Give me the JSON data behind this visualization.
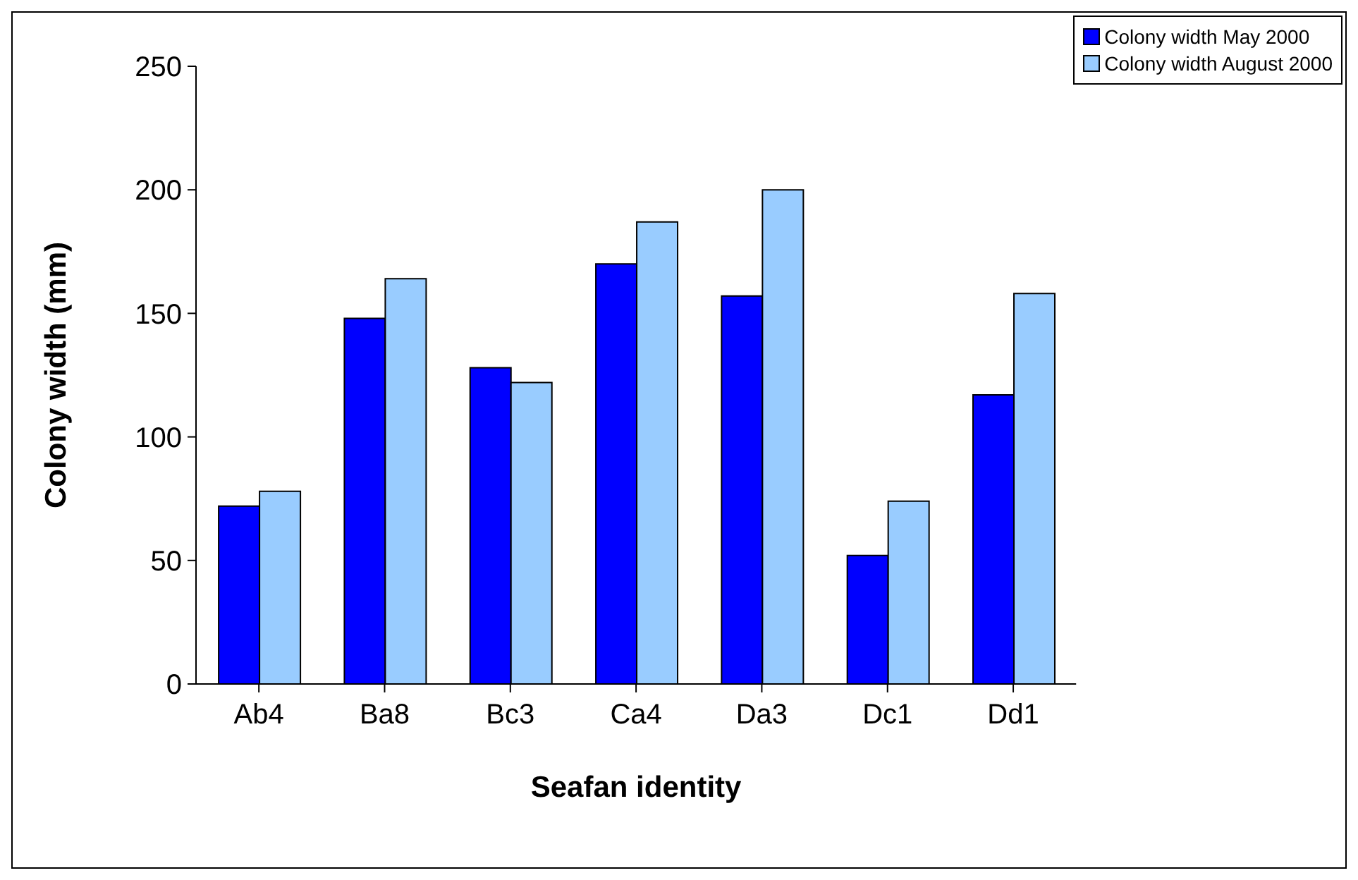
{
  "chart_data": {
    "type": "bar",
    "xlabel": "Seafan identity",
    "ylabel": "Colony width (mm)",
    "categories": [
      "Ab4",
      "Ba8",
      "Bc3",
      "Ca4",
      "Da3",
      "Dc1",
      "Dd1"
    ],
    "series": [
      {
        "name": "Colony width May 2000",
        "color": "#0000ff",
        "values": [
          72,
          148,
          128,
          170,
          157,
          52,
          117
        ]
      },
      {
        "name": "Colony width August 2000",
        "color": "#99ccff",
        "values": [
          78,
          164,
          122,
          187,
          200,
          74,
          158
        ]
      }
    ],
    "ylim": [
      0,
      250
    ],
    "yticks": [
      0,
      50,
      100,
      150,
      200,
      250
    ],
    "grid": false,
    "legend": "top right"
  }
}
